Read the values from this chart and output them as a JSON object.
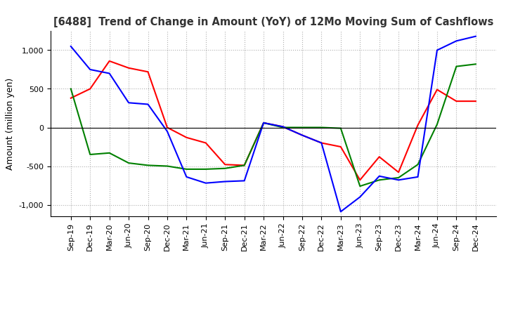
{
  "title": "[6488]  Trend of Change in Amount (YoY) of 12Mo Moving Sum of Cashflows",
  "ylabel": "Amount (million yen)",
  "ylim": [
    -1150,
    1250
  ],
  "yticks": [
    -1000,
    -500,
    0,
    500,
    1000
  ],
  "x_labels": [
    "Sep-19",
    "Dec-19",
    "Mar-20",
    "Jun-20",
    "Sep-20",
    "Dec-20",
    "Mar-21",
    "Jun-21",
    "Sep-21",
    "Dec-21",
    "Mar-22",
    "Jun-22",
    "Sep-22",
    "Dec-22",
    "Mar-23",
    "Jun-23",
    "Sep-23",
    "Dec-23",
    "Mar-24",
    "Jun-24",
    "Sep-24",
    "Dec-24"
  ],
  "operating": [
    380,
    500,
    860,
    770,
    720,
    0,
    -130,
    -200,
    -480,
    -490,
    60,
    10,
    -100,
    -200,
    -250,
    -680,
    -380,
    -580,
    30,
    490,
    340,
    340
  ],
  "investing": [
    500,
    -350,
    -330,
    -460,
    -490,
    -500,
    -540,
    -540,
    -530,
    -490,
    60,
    0,
    0,
    0,
    -10,
    -760,
    -680,
    -650,
    -480,
    40,
    790,
    820
  ],
  "free": [
    1050,
    750,
    700,
    320,
    300,
    -50,
    -640,
    -720,
    -700,
    -690,
    60,
    10,
    -100,
    -200,
    -1090,
    -900,
    -630,
    -680,
    -640,
    1000,
    1120,
    1180
  ],
  "operating_color": "#ff0000",
  "investing_color": "#008000",
  "free_color": "#0000ff",
  "background_color": "#ffffff",
  "grid_color": "#b0b0b0",
  "title_color": "#333333",
  "title_fontsize": 10.5,
  "tick_fontsize": 8,
  "ylabel_fontsize": 9,
  "legend_fontsize": 9,
  "linewidth": 1.5
}
